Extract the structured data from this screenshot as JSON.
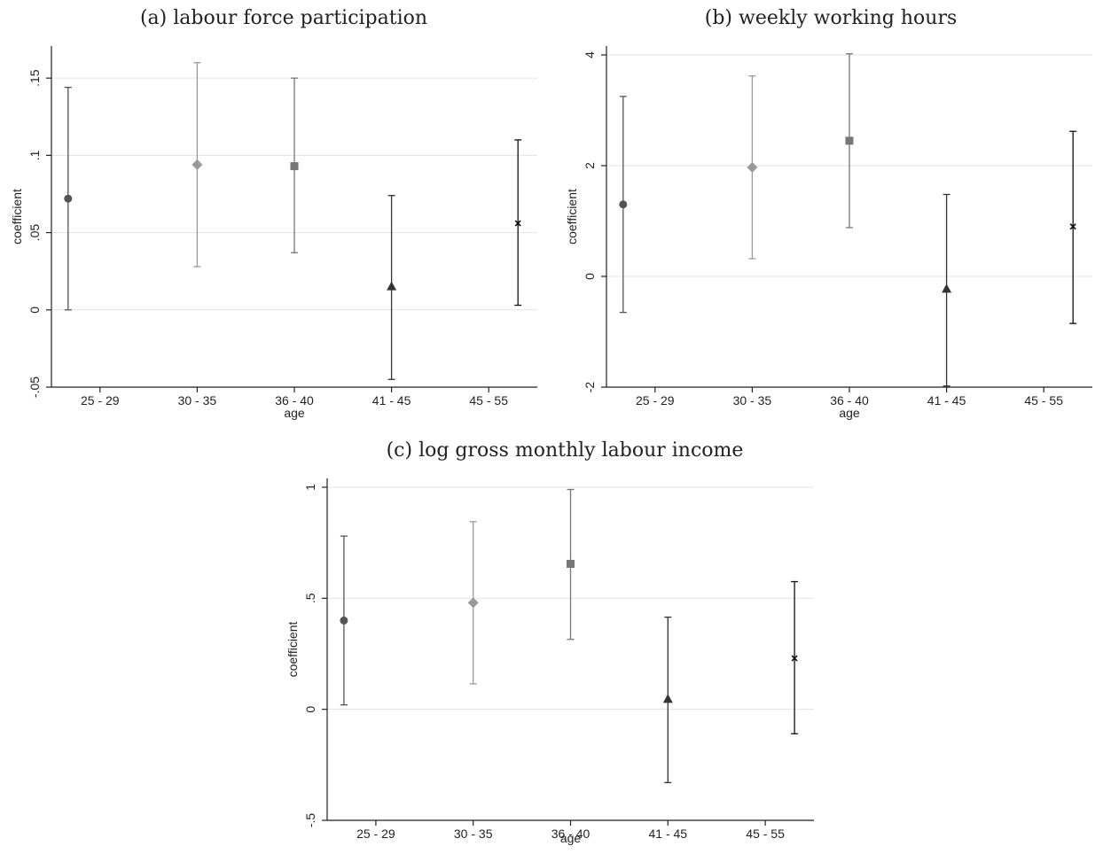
{
  "chart_data": [
    {
      "type": "scatter",
      "title": "(a) labour force participation",
      "xlabel": "age",
      "ylabel": "coefficient",
      "categories": [
        "25 - 29",
        "30 - 35",
        "36 - 40",
        "41 - 45",
        "45 - 55"
      ],
      "ylim": [
        -0.05,
        0.165
      ],
      "yticks": [
        -0.05,
        0,
        0.05,
        0.1,
        0.15
      ],
      "ytick_labels": [
        "-.05",
        "0",
        ".05",
        ".1",
        ".15"
      ],
      "grid": true,
      "points": [
        {
          "estimate": 0.072,
          "ci_low": 0.0,
          "ci_high": 0.144,
          "marker": "circle",
          "color": "#555555"
        },
        {
          "estimate": 0.094,
          "ci_low": 0.028,
          "ci_high": 0.16,
          "marker": "diamond",
          "color": "#999999"
        },
        {
          "estimate": 0.093,
          "ci_low": 0.037,
          "ci_high": 0.15,
          "marker": "square",
          "color": "#777777"
        },
        {
          "estimate": 0.015,
          "ci_low": -0.045,
          "ci_high": 0.074,
          "marker": "triangle",
          "color": "#333333"
        },
        {
          "estimate": 0.056,
          "ci_low": 0.003,
          "ci_high": 0.11,
          "marker": "x",
          "color": "#111111"
        }
      ]
    },
    {
      "type": "scatter",
      "title": "(b) weekly working hours",
      "xlabel": "age",
      "ylabel": "coefficient",
      "categories": [
        "25 - 29",
        "30 - 35",
        "36 - 40",
        "41 - 45",
        "45 - 55"
      ],
      "ylim": [
        -2,
        4
      ],
      "yticks": [
        -2,
        0,
        2,
        4
      ],
      "ytick_labels": [
        "-2",
        "0",
        "2",
        "4"
      ],
      "grid": true,
      "points": [
        {
          "estimate": 1.3,
          "ci_low": -0.65,
          "ci_high": 3.25,
          "marker": "circle",
          "color": "#555555"
        },
        {
          "estimate": 1.97,
          "ci_low": 0.32,
          "ci_high": 3.62,
          "marker": "diamond",
          "color": "#999999"
        },
        {
          "estimate": 2.45,
          "ci_low": 0.88,
          "ci_high": 4.02,
          "marker": "square",
          "color": "#777777"
        },
        {
          "estimate": -0.23,
          "ci_low": -1.98,
          "ci_high": 1.48,
          "marker": "triangle",
          "color": "#333333"
        },
        {
          "estimate": 0.9,
          "ci_low": -0.85,
          "ci_high": 2.62,
          "marker": "x",
          "color": "#111111"
        }
      ]
    },
    {
      "type": "scatter",
      "title": "(c) log gross monthly labour income",
      "xlabel": "age",
      "ylabel": "coefficient",
      "categories": [
        "25 - 29",
        "30 - 35",
        "36 - 40",
        "41 - 45",
        "45 - 55"
      ],
      "ylim": [
        -0.5,
        1
      ],
      "yticks": [
        -0.5,
        0,
        0.5,
        1
      ],
      "ytick_labels": [
        "-.5",
        "0",
        ".5",
        "1"
      ],
      "grid": true,
      "points": [
        {
          "estimate": 0.4,
          "ci_low": 0.02,
          "ci_high": 0.78,
          "marker": "circle",
          "color": "#555555"
        },
        {
          "estimate": 0.48,
          "ci_low": 0.115,
          "ci_high": 0.845,
          "marker": "diamond",
          "color": "#999999"
        },
        {
          "estimate": 0.655,
          "ci_low": 0.315,
          "ci_high": 0.99,
          "marker": "square",
          "color": "#777777"
        },
        {
          "estimate": 0.045,
          "ci_low": -0.33,
          "ci_high": 0.415,
          "marker": "triangle",
          "color": "#333333"
        },
        {
          "estimate": 0.23,
          "ci_low": -0.11,
          "ci_high": 0.575,
          "marker": "x",
          "color": "#111111"
        }
      ]
    }
  ]
}
